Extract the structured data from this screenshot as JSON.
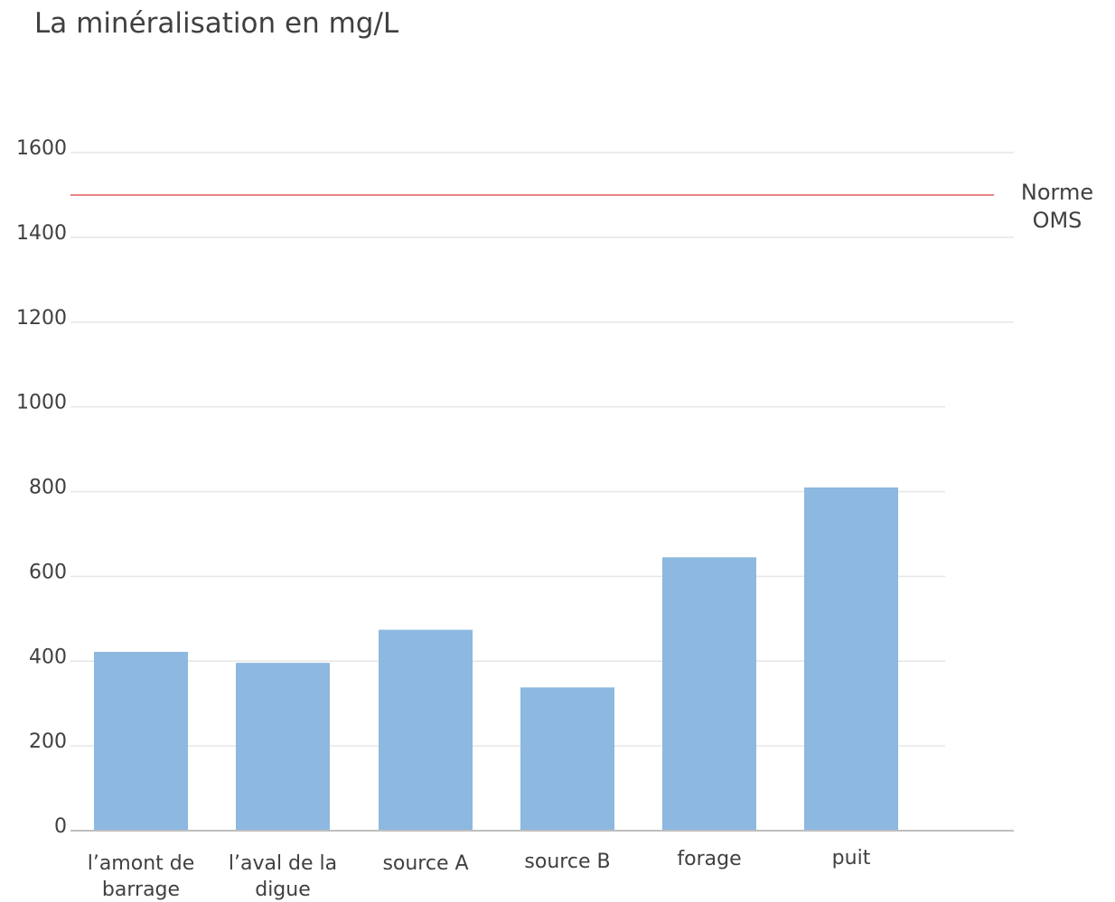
{
  "chart_data": {
    "type": "bar",
    "title": "La minéralisation en mg/L",
    "categories": [
      "l’amont de barrage",
      "l’aval de la digue",
      "source A",
      "source B",
      "forage",
      "puit"
    ],
    "category_lines": [
      [
        "l’amont de",
        "barrage"
      ],
      [
        "l’aval de la",
        "digue"
      ],
      [
        "source A"
      ],
      [
        "source B"
      ],
      [
        "forage"
      ],
      [
        "puit"
      ]
    ],
    "values": [
      422,
      396,
      474,
      338,
      645,
      810
    ],
    "yticks": [
      "0",
      "200",
      "400",
      "600",
      "800",
      "1000",
      "1200",
      "1400",
      "1600"
    ],
    "ylim": [
      0,
      1600
    ],
    "grid": true,
    "reference_line": {
      "value": 1500,
      "label_lines": [
        "Norme",
        "OMS"
      ],
      "color": "#e05a5a"
    },
    "colors": {
      "bar": "#8db8e0",
      "grid": "#e6e6e6",
      "axis": "#bfbfbf"
    }
  }
}
